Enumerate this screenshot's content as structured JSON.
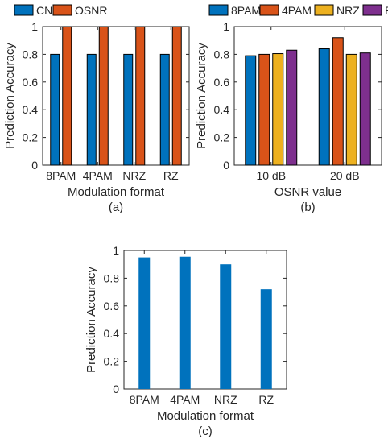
{
  "colors": {
    "blue": "#0072bd",
    "orange": "#d95319",
    "yellow": "#edb120",
    "purple": "#7e2f8e"
  },
  "chart_data": [
    {
      "id": "a",
      "type": "bar",
      "caption": "(a)",
      "ylabel": "Prediction Accuracy",
      "xlabel": "Modulation format",
      "categories": [
        "8PAM",
        "4PAM",
        "NRZ",
        "RZ"
      ],
      "ylim": [
        0,
        1
      ],
      "yticks": [
        "0",
        "0.2",
        "0.4",
        "0.6",
        "0.8",
        "1"
      ],
      "legend": "top",
      "series": [
        {
          "name": "CN",
          "color": "#0072bd",
          "values": [
            0.8,
            0.8,
            0.8,
            0.8
          ]
        },
        {
          "name": "OSNR",
          "color": "#d95319",
          "values": [
            1.0,
            1.0,
            1.0,
            1.0
          ]
        }
      ]
    },
    {
      "id": "b",
      "type": "bar",
      "caption": "(b)",
      "ylabel": "Prediction Accuracy",
      "xlabel": "OSNR value",
      "categories": [
        "10 dB",
        "20 dB"
      ],
      "ylim": [
        0,
        1
      ],
      "yticks": [
        "0",
        "0.2",
        "0.4",
        "0.6",
        "0.8",
        "1"
      ],
      "legend": "top",
      "series": [
        {
          "name": "8PAM",
          "color": "#0072bd",
          "values": [
            0.79,
            0.84
          ]
        },
        {
          "name": "4PAM",
          "color": "#d95319",
          "values": [
            0.8,
            0.92
          ]
        },
        {
          "name": "NRZ",
          "color": "#edb120",
          "values": [
            0.805,
            0.8
          ]
        },
        {
          "name": "RZ",
          "color": "#7e2f8e",
          "values": [
            0.83,
            0.81
          ]
        }
      ]
    },
    {
      "id": "c",
      "type": "bar",
      "caption": "(c)",
      "ylabel": "Prediction Accuracy",
      "xlabel": "Modulation format",
      "categories": [
        "8PAM",
        "4PAM",
        "NRZ",
        "RZ"
      ],
      "ylim": [
        0,
        1
      ],
      "yticks": [
        "0",
        "0.2",
        "0.4",
        "0.6",
        "0.8",
        "1"
      ],
      "series": [
        {
          "color": "#0072bd",
          "values": [
            0.95,
            0.955,
            0.9,
            0.72
          ]
        }
      ]
    }
  ]
}
